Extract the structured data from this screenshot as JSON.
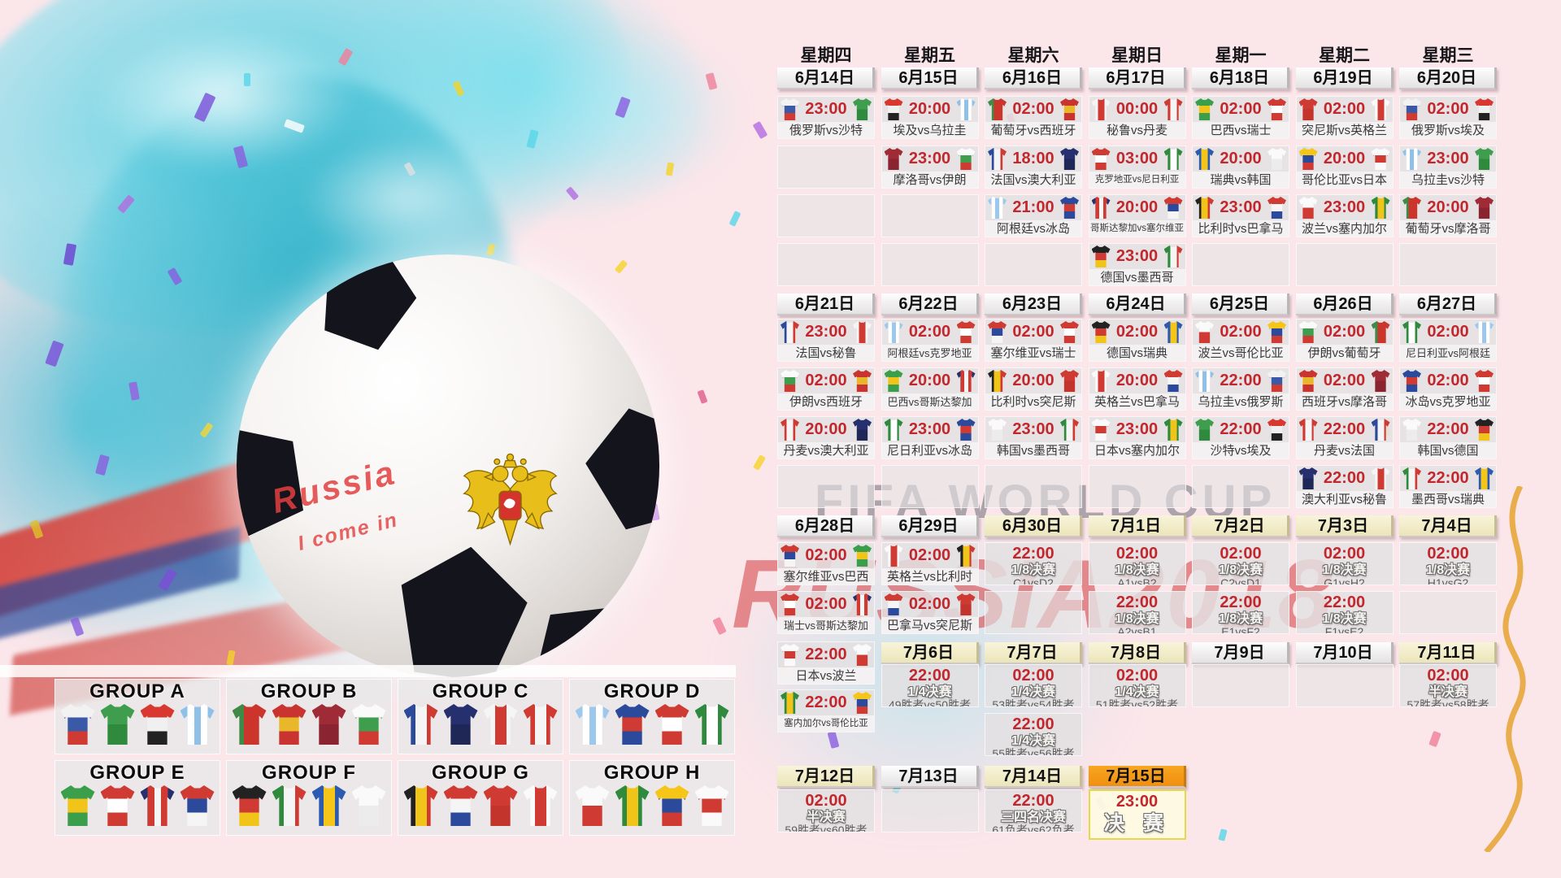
{
  "watermark": {
    "line1": "FIFA WORLD CUP",
    "line2": "RUSSIA2018"
  },
  "ball_text": {
    "line1": "Russia",
    "line2": "I come in"
  },
  "calendar": {
    "weekdays": [
      "星期四",
      "星期五",
      "星期六",
      "星期日",
      "星期一",
      "星期二",
      "星期三"
    ],
    "weeks": [
      {
        "dates": [
          "6月14日",
          "6月15日",
          "6月16日",
          "6月17日",
          "6月18日",
          "6月19日",
          "6月20日"
        ],
        "date_styles": [
          "plain",
          "plain",
          "plain",
          "plain",
          "plain",
          "plain",
          "plain"
        ],
        "columns": [
          [
            {
              "t": "23:00",
              "h": "俄罗斯",
              "a": "沙特"
            },
            "e",
            "e",
            "e"
          ],
          [
            {
              "t": "20:00",
              "h": "埃及",
              "a": "乌拉圭"
            },
            {
              "t": "23:00",
              "h": "摩洛哥",
              "a": "伊朗"
            },
            "e",
            "e"
          ],
          [
            {
              "t": "02:00",
              "h": "葡萄牙",
              "a": "西班牙"
            },
            {
              "t": "18:00",
              "h": "法国",
              "a": "澳大利亚"
            },
            {
              "t": "21:00",
              "h": "阿根廷",
              "a": "冰岛"
            },
            "e"
          ],
          [
            {
              "t": "00:00",
              "h": "秘鲁",
              "a": "丹麦"
            },
            {
              "t": "03:00",
              "h": "克罗地亚",
              "a": "尼日利亚"
            },
            {
              "t": "20:00",
              "h": "哥斯达黎加",
              "a": "塞尔维亚"
            },
            {
              "t": "23:00",
              "h": "德国",
              "a": "墨西哥"
            }
          ],
          [
            {
              "t": "02:00",
              "h": "巴西",
              "a": "瑞士"
            },
            {
              "t": "20:00",
              "h": "瑞典",
              "a": "韩国"
            },
            {
              "t": "23:00",
              "h": "比利时",
              "a": "巴拿马"
            },
            "e"
          ],
          [
            {
              "t": "02:00",
              "h": "突尼斯",
              "a": "英格兰"
            },
            {
              "t": "20:00",
              "h": "哥伦比亚",
              "a": "日本"
            },
            {
              "t": "23:00",
              "h": "波兰",
              "a": "塞内加尔"
            },
            "e"
          ],
          [
            {
              "t": "02:00",
              "h": "俄罗斯",
              "a": "埃及"
            },
            {
              "t": "23:00",
              "h": "乌拉圭",
              "a": "沙特"
            },
            {
              "t": "20:00",
              "h": "葡萄牙",
              "a": "摩洛哥"
            },
            "e"
          ]
        ]
      },
      {
        "dates": [
          "6月21日",
          "6月22日",
          "6月23日",
          "6月24日",
          "6月25日",
          "6月26日",
          "6月27日"
        ],
        "date_styles": [
          "plain",
          "plain",
          "plain",
          "plain",
          "plain",
          "plain",
          "plain"
        ],
        "columns": [
          [
            {
              "t": "23:00",
              "h": "法国",
              "a": "秘鲁"
            },
            {
              "t": "02:00",
              "h": "伊朗",
              "a": "西班牙"
            },
            {
              "t": "20:00",
              "h": "丹麦",
              "a": "澳大利亚"
            },
            "e"
          ],
          [
            {
              "t": "02:00",
              "h": "阿根廷",
              "a": "克罗地亚"
            },
            {
              "t": "20:00",
              "h": "巴西",
              "a": "哥斯达黎加"
            },
            {
              "t": "23:00",
              "h": "尼日利亚",
              "a": "冰岛"
            },
            "e"
          ],
          [
            {
              "t": "02:00",
              "h": "塞尔维亚",
              "a": "瑞士"
            },
            {
              "t": "20:00",
              "h": "比利时",
              "a": "突尼斯"
            },
            {
              "t": "23:00",
              "h": "韩国",
              "a": "墨西哥"
            },
            "e"
          ],
          [
            {
              "t": "02:00",
              "h": "德国",
              "a": "瑞典"
            },
            {
              "t": "20:00",
              "h": "英格兰",
              "a": "巴拿马"
            },
            {
              "t": "23:00",
              "h": "日本",
              "a": "塞内加尔"
            },
            "e"
          ],
          [
            {
              "t": "02:00",
              "h": "波兰",
              "a": "哥伦比亚"
            },
            {
              "t": "22:00",
              "h": "乌拉圭",
              "a": "俄罗斯"
            },
            {
              "t": "22:00",
              "h": "沙特",
              "a": "埃及"
            },
            "e"
          ],
          [
            {
              "t": "02:00",
              "h": "伊朗",
              "a": "葡萄牙"
            },
            {
              "t": "02:00",
              "h": "西班牙",
              "a": "摩洛哥"
            },
            {
              "t": "22:00",
              "h": "丹麦",
              "a": "法国"
            },
            {
              "t": "22:00",
              "h": "澳大利亚",
              "a": "秘鲁"
            }
          ],
          [
            {
              "t": "02:00",
              "h": "尼日利亚",
              "a": "阿根廷"
            },
            {
              "t": "02:00",
              "h": "冰岛",
              "a": "克罗地亚"
            },
            {
              "t": "22:00",
              "h": "韩国",
              "a": "德国"
            },
            {
              "t": "22:00",
              "h": "墨西哥",
              "a": "瑞典"
            }
          ]
        ]
      },
      {
        "dates": [
          "6月28日",
          "6月29日",
          "6月30日",
          "7月1日",
          "7月2日",
          "7月3日",
          "7月4日"
        ],
        "date_styles": [
          "plain",
          "plain",
          "cream",
          "cream",
          "cream",
          "cream",
          "cream"
        ],
        "columns": [
          [
            {
              "t": "02:00",
              "h": "塞尔维亚",
              "a": "巴西"
            },
            {
              "t": "02:00",
              "h": "瑞士",
              "a": "哥斯达黎加"
            },
            {
              "t": "22:00",
              "h": "日本",
              "a": "波兰"
            },
            {
              "t": "22:00",
              "h": "塞内加尔",
              "a": "哥伦比亚"
            }
          ],
          [
            {
              "t": "02:00",
              "h": "英格兰",
              "a": "比利时"
            },
            {
              "t": "02:00",
              "h": "巴拿马",
              "a": "突尼斯"
            }
          ],
          [
            {
              "t": "22:00",
              "s": "1/8决赛",
              "m": "C1vsD2"
            },
            "e"
          ],
          [
            {
              "t": "02:00",
              "s": "1/8决赛",
              "m": "A1vsB2"
            },
            {
              "t": "22:00",
              "s": "1/8决赛",
              "m": "A2vsB1"
            }
          ],
          [
            {
              "t": "02:00",
              "s": "1/8决赛",
              "m": "C2vsD1"
            },
            {
              "t": "22:00",
              "s": "1/8决赛",
              "m": "E1vsF2"
            }
          ],
          [
            {
              "t": "02:00",
              "s": "1/8决赛",
              "m": "G1vsH2"
            },
            {
              "t": "22:00",
              "s": "1/8决赛",
              "m": "F1vsE2"
            }
          ],
          [
            {
              "t": "02:00",
              "s": "1/8决赛",
              "m": "H1vsG2"
            },
            "e"
          ]
        ]
      },
      {
        "dates": [
          "7月6日",
          "7月7日",
          "7月8日",
          "7月9日",
          "7月10日",
          "7月11日"
        ],
        "date_styles": [
          "cream",
          "cream",
          "cream",
          "plain",
          "plain",
          "cream"
        ],
        "columns": [
          [
            {
              "t": "22:00",
              "s": "1/4决赛",
              "m": "49胜者vs50胜者"
            }
          ],
          [
            {
              "t": "02:00",
              "s": "1/4决赛",
              "m": "53胜者vs54胜者"
            },
            {
              "t": "22:00",
              "s": "1/4决赛",
              "m": "55胜者vs56胜者"
            }
          ],
          [
            {
              "t": "02:00",
              "s": "1/4决赛",
              "m": "51胜者vs52胜者"
            }
          ],
          [
            "e"
          ],
          [
            "e"
          ],
          [
            {
              "t": "02:00",
              "s": "半决赛",
              "m": "57胜者vs58胜者"
            }
          ]
        ]
      },
      {
        "dates": [
          "7月12日",
          "7月13日",
          "7月14日",
          "7月15日"
        ],
        "date_styles": [
          "cream",
          "plain",
          "cream",
          "orange"
        ],
        "columns": [
          [
            {
              "t": "02:00",
              "s": "半决赛",
              "m": "59胜者vs60胜者"
            }
          ],
          [
            "e"
          ],
          [
            {
              "t": "22:00",
              "s": "三四名决赛",
              "m": "61负者vs62负者"
            }
          ],
          [
            {
              "t": "23:00",
              "s": "决 赛",
              "f": true
            }
          ]
        ]
      }
    ]
  },
  "groups": [
    {
      "name": "GROUP A",
      "teams": [
        "俄罗斯",
        "沙特",
        "埃及",
        "乌拉圭"
      ]
    },
    {
      "name": "GROUP B",
      "teams": [
        "葡萄牙",
        "西班牙",
        "摩洛哥",
        "伊朗"
      ]
    },
    {
      "name": "GROUP C",
      "teams": [
        "法国",
        "澳大利亚",
        "秘鲁",
        "丹麦"
      ]
    },
    {
      "name": "GROUP D",
      "teams": [
        "阿根廷",
        "冰岛",
        "克罗地亚",
        "尼日利亚"
      ]
    },
    {
      "name": "GROUP E",
      "teams": [
        "巴西",
        "瑞士",
        "哥斯达黎加",
        "塞尔维亚"
      ]
    },
    {
      "name": "GROUP F",
      "teams": [
        "德国",
        "墨西哥",
        "瑞典",
        "韩国"
      ]
    },
    {
      "name": "GROUP G",
      "teams": [
        "比利时",
        "巴拿马",
        "突尼斯",
        "英格兰"
      ]
    },
    {
      "name": "GROUP H",
      "teams": [
        "波兰",
        "塞内加尔",
        "哥伦比亚",
        "日本"
      ]
    }
  ],
  "colors": {
    "time_red": "#c1272d",
    "final_border": "#e6d84a",
    "orange_header": "#f49a18",
    "cream_header": "#f2edcb",
    "splash_cyan": "#49c4d8",
    "watermark_red": "#d02a2e"
  },
  "team_colors": {
    "俄罗斯": {
      "d": "h",
      "c": [
        "#f2f2f2",
        "#3a5aa8",
        "#cf3a32"
      ]
    },
    "沙特": {
      "d": "h",
      "c": [
        "#3f9e4d",
        "#2f8a3e"
      ]
    },
    "埃及": {
      "d": "h",
      "c": [
        "#d8382f",
        "#f0f0f0",
        "#222222"
      ]
    },
    "乌拉圭": {
      "d": "v",
      "c": [
        "#8fc1e8",
        "#ffffff",
        "#8fc1e8",
        "#ffffff",
        "#8fc1e8"
      ]
    },
    "葡萄牙": {
      "d": "v",
      "c": [
        "#3e8a46",
        "#cb352c",
        "#cb352c"
      ]
    },
    "西班牙": {
      "d": "h",
      "c": [
        "#c93430",
        "#e8b82a",
        "#c93430"
      ]
    },
    "摩洛哥": {
      "d": "h",
      "c": [
        "#9e2b35",
        "#8a2430"
      ]
    },
    "伊朗": {
      "d": "h",
      "c": [
        "#fafafa",
        "#3f9e4d",
        "#cf3a32"
      ]
    },
    "法国": {
      "d": "v",
      "c": [
        "#2b4a9b",
        "#f5f5f5",
        "#cf3a32"
      ]
    },
    "澳大利亚": {
      "d": "h",
      "c": [
        "#27306e",
        "#1f2757"
      ]
    },
    "秘鲁": {
      "d": "v",
      "c": [
        "#f5f5f5",
        "#cf3a32",
        "#f5f5f5"
      ]
    },
    "丹麦": {
      "d": "v",
      "c": [
        "#cf3a32",
        "#f5f5f5",
        "#cf3a32"
      ]
    },
    "阿根廷": {
      "d": "v",
      "c": [
        "#9cc8ee",
        "#ffffff",
        "#9cc8ee",
        "#ffffff",
        "#9cc8ee"
      ]
    },
    "冰岛": {
      "d": "h",
      "c": [
        "#2b4a9b",
        "#cf3a32",
        "#2b4a9b"
      ]
    },
    "克罗地亚": {
      "d": "h",
      "c": [
        "#cf3a32",
        "#ffffff",
        "#cf3a32"
      ]
    },
    "尼日利亚": {
      "d": "v",
      "c": [
        "#2f8a3e",
        "#ffffff",
        "#2f8a3e"
      ]
    },
    "巴西": {
      "d": "h",
      "c": [
        "#3a9e4a",
        "#f0c419",
        "#3a9e4a"
      ]
    },
    "瑞士": {
      "d": "h",
      "c": [
        "#cf3a32",
        "#ffffff",
        "#cf3a32"
      ]
    },
    "哥斯达黎加": {
      "d": "v",
      "c": [
        "#27306e",
        "#cf3a32",
        "#f5f5f5",
        "#cf3a32",
        "#27306e"
      ]
    },
    "塞尔维亚": {
      "d": "h",
      "c": [
        "#cf3a32",
        "#2b4a9b",
        "#f5f5f5"
      ]
    },
    "德国": {
      "d": "h",
      "c": [
        "#222222",
        "#cf3a32",
        "#f0c419"
      ]
    },
    "墨西哥": {
      "d": "v",
      "c": [
        "#2f8a3e",
        "#f5f5f5",
        "#cf3a32"
      ]
    },
    "瑞典": {
      "d": "v",
      "c": [
        "#2b5bb0",
        "#f5c518",
        "#2b5bb0"
      ]
    },
    "韩国": {
      "d": "h",
      "c": [
        "#fafafa",
        "#ececec"
      ]
    },
    "比利时": {
      "d": "v",
      "c": [
        "#222222",
        "#f0c419",
        "#cf3a32"
      ]
    },
    "巴拿马": {
      "d": "h",
      "c": [
        "#cf3a32",
        "#f5f5f5",
        "#2b4a9b"
      ]
    },
    "突尼斯": {
      "d": "h",
      "c": [
        "#cf3a32",
        "#c2342c"
      ]
    },
    "英格兰": {
      "d": "v",
      "c": [
        "#fafafa",
        "#cf3a32",
        "#fafafa"
      ]
    },
    "波兰": {
      "d": "h",
      "c": [
        "#fafafa",
        "#cf3a32"
      ]
    },
    "塞内加尔": {
      "d": "v",
      "c": [
        "#2f8a3e",
        "#f0c419",
        "#2f8a3e"
      ]
    },
    "哥伦比亚": {
      "d": "h",
      "c": [
        "#f5c518",
        "#2b4a9b",
        "#cf3a32"
      ]
    },
    "日本": {
      "d": "h",
      "c": [
        "#fafafa",
        "#cf3a32",
        "#fafafa"
      ]
    }
  }
}
